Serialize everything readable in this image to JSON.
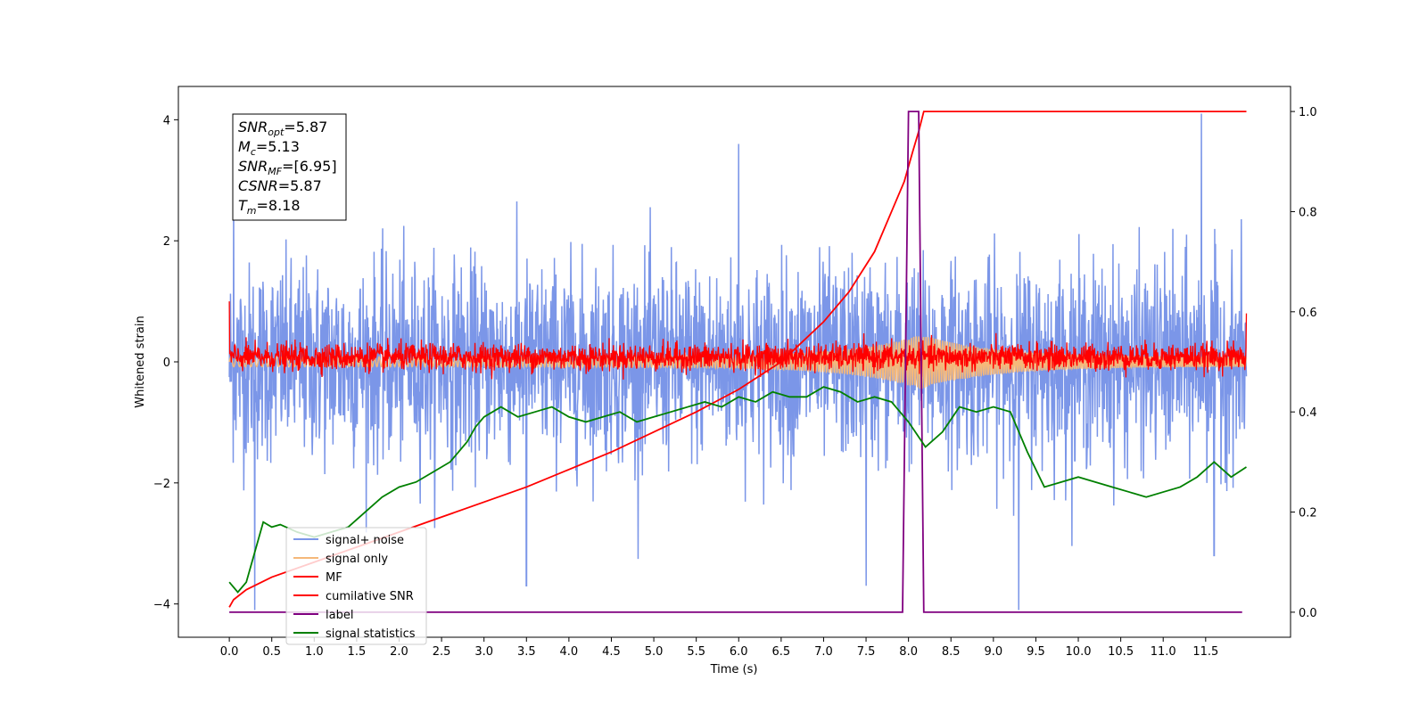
{
  "chart_data": {
    "type": "line",
    "title": "",
    "xlabel": "Time (s)",
    "ylabel": "Whitened strain",
    "y2label": "",
    "xlim": [
      -0.6,
      12.5
    ],
    "ylim": [
      -4.55,
      4.55
    ],
    "y2lim": [
      -0.05,
      1.05
    ],
    "x_ticks": [
      0.0,
      0.5,
      1.0,
      1.5,
      2.0,
      2.5,
      3.0,
      3.5,
      4.0,
      4.5,
      5.0,
      5.5,
      6.0,
      6.5,
      7.0,
      7.5,
      8.0,
      8.5,
      9.0,
      9.5,
      10.0,
      10.5,
      11.0,
      11.5
    ],
    "x_tick_labels": [
      "0.0",
      "0.5",
      "1.0",
      "1.5",
      "2.0",
      "2.5",
      "3.0",
      "3.5",
      "4.0",
      "4.5",
      "5.0",
      "5.5",
      "6.0",
      "6.5",
      "7.0",
      "7.5",
      "8.0",
      "8.5",
      "9.0",
      "9.5",
      "10.0",
      "10.5",
      "11.0",
      "11.5"
    ],
    "y_ticks": [
      -4,
      -2,
      0,
      2,
      4
    ],
    "y_tick_labels": [
      "−4",
      "−2",
      "0",
      "2",
      "4"
    ],
    "y2_ticks": [
      0.0,
      0.2,
      0.4,
      0.6,
      0.8,
      1.0
    ],
    "y2_tick_labels": [
      "0.0",
      "0.2",
      "0.4",
      "0.6",
      "0.8",
      "1.0"
    ],
    "grid": false,
    "legend_placement": "lower-left",
    "annotation_box": {
      "lines": [
        {
          "main": "SNR",
          "sub": "opt",
          "value": "=5.87"
        },
        {
          "main": "M",
          "sub": "c",
          "value": "=5.13"
        },
        {
          "main": "SNR",
          "sub": "MF",
          "value": "=[6.95]"
        },
        {
          "main": "CSNR",
          "sub": "",
          "value": "=5.87"
        },
        {
          "main": "T",
          "sub": "m",
          "value": "=8.18"
        }
      ]
    },
    "series": [
      {
        "name": "signal+ noise",
        "axis": "left",
        "color": "#7b96e8",
        "kind": "noise",
        "x_range": [
          0.0,
          11.98
        ],
        "typical_range": [
          -1.7,
          1.7
        ],
        "peaks": [
          [
            0.05,
            3.0
          ],
          [
            0.3,
            -4.1
          ],
          [
            3.5,
            3.8
          ],
          [
            3.5,
            -3.7
          ],
          [
            6.0,
            3.6
          ],
          [
            7.5,
            -3.7
          ],
          [
            9.3,
            -4.1
          ],
          [
            11.45,
            4.1
          ],
          [
            11.6,
            -3.2
          ]
        ]
      },
      {
        "name": "signal only",
        "axis": "left",
        "color": "#f5b87a",
        "kind": "chirp",
        "x_range": [
          0.0,
          11.98
        ],
        "amplitude_range": [
          0.08,
          0.45
        ],
        "peak_time": 8.15
      },
      {
        "name": "MF",
        "axis": "left",
        "color": "#ff0000",
        "kind": "noise",
        "x_range": [
          0.0,
          11.98
        ],
        "typical_range": [
          -0.15,
          0.35
        ],
        "endpoints": [
          [
            0.0,
            1.0
          ],
          [
            11.98,
            0.8
          ]
        ]
      },
      {
        "name": "cumilative SNR",
        "axis": "right",
        "color": "#ff0000",
        "x": [
          0.0,
          0.05,
          0.2,
          0.5,
          1.0,
          1.5,
          2.0,
          2.5,
          3.0,
          3.5,
          4.0,
          4.5,
          5.0,
          5.5,
          6.0,
          6.5,
          7.0,
          7.3,
          7.6,
          7.8,
          7.95,
          8.05,
          8.12,
          8.18,
          8.5,
          11.98
        ],
        "y": [
          0.01,
          0.025,
          0.045,
          0.07,
          0.1,
          0.13,
          0.16,
          0.19,
          0.22,
          0.25,
          0.285,
          0.32,
          0.36,
          0.4,
          0.445,
          0.5,
          0.58,
          0.64,
          0.72,
          0.8,
          0.86,
          0.92,
          0.96,
          1.0,
          1.0,
          1.0
        ]
      },
      {
        "name": "label",
        "axis": "right",
        "color": "#800080",
        "x": [
          0.0,
          7.93,
          8.0,
          8.12,
          8.18,
          11.93
        ],
        "y": [
          0.0,
          0.0,
          1.0,
          1.0,
          0.0,
          0.0
        ]
      },
      {
        "name": "signal statistics",
        "axis": "right",
        "color": "#008000",
        "x": [
          0.0,
          0.1,
          0.2,
          0.3,
          0.4,
          0.5,
          0.6,
          0.8,
          1.0,
          1.2,
          1.4,
          1.6,
          1.8,
          2.0,
          2.2,
          2.4,
          2.6,
          2.8,
          2.9,
          3.0,
          3.2,
          3.4,
          3.6,
          3.8,
          4.0,
          4.2,
          4.4,
          4.6,
          4.8,
          5.0,
          5.2,
          5.4,
          5.6,
          5.8,
          6.0,
          6.2,
          6.4,
          6.6,
          6.8,
          7.0,
          7.2,
          7.4,
          7.6,
          7.8,
          8.0,
          8.2,
          8.4,
          8.6,
          8.8,
          9.0,
          9.2,
          9.4,
          9.6,
          9.8,
          10.0,
          10.2,
          10.4,
          10.6,
          10.8,
          11.0,
          11.2,
          11.4,
          11.6,
          11.8,
          11.98
        ],
        "y": [
          0.06,
          0.04,
          0.06,
          0.12,
          0.18,
          0.17,
          0.175,
          0.16,
          0.15,
          0.16,
          0.17,
          0.2,
          0.23,
          0.25,
          0.26,
          0.28,
          0.3,
          0.34,
          0.37,
          0.39,
          0.41,
          0.39,
          0.4,
          0.41,
          0.39,
          0.38,
          0.39,
          0.4,
          0.38,
          0.39,
          0.4,
          0.41,
          0.42,
          0.41,
          0.43,
          0.42,
          0.44,
          0.43,
          0.43,
          0.45,
          0.44,
          0.42,
          0.43,
          0.42,
          0.38,
          0.33,
          0.36,
          0.41,
          0.4,
          0.41,
          0.4,
          0.32,
          0.25,
          0.26,
          0.27,
          0.26,
          0.25,
          0.24,
          0.23,
          0.24,
          0.25,
          0.27,
          0.3,
          0.27,
          0.29
        ]
      }
    ]
  }
}
